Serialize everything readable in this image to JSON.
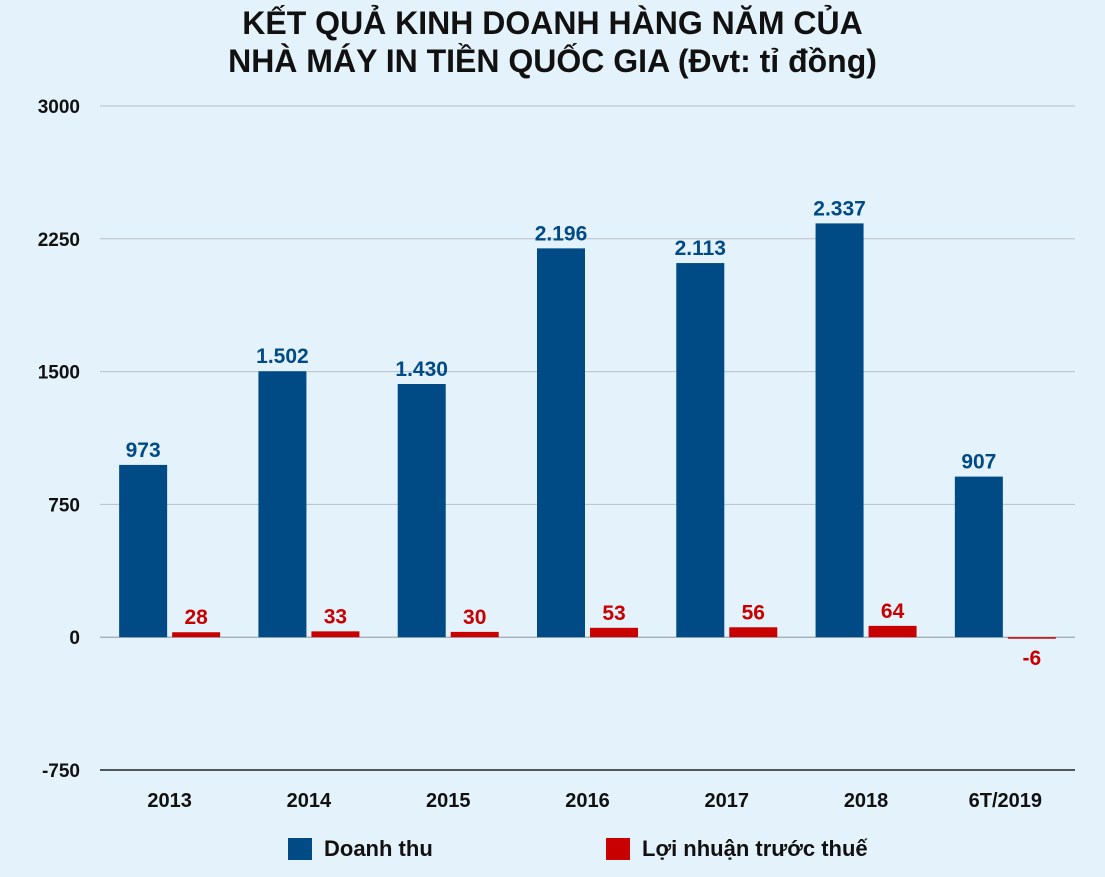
{
  "chart_data": {
    "type": "bar",
    "title_lines": [
      "KẾT QUẢ KINH DOANH HÀNG NĂM CỦA",
      "NHÀ MÁY IN TIỀN QUỐC GIA (Đvt: tỉ đồng)"
    ],
    "categories": [
      "2013",
      "2014",
      "2015",
      "2016",
      "2017",
      "2018",
      "6T/2019"
    ],
    "ylim": [
      -750,
      3000
    ],
    "yticks": [
      3000,
      2250,
      1500,
      750,
      0,
      -750
    ],
    "grid": true,
    "legend_position": "bottom",
    "series": [
      {
        "name": "Doanh thu",
        "color": "#004a86",
        "values": [
          973,
          1502,
          1430,
          2196,
          2113,
          2337,
          907
        ],
        "labels": [
          "973",
          "1.502",
          "1.430",
          "2.196",
          "2.113",
          "2.337",
          "907"
        ]
      },
      {
        "name": "Lợi nhuận trước thuế",
        "color": "#c80000",
        "values": [
          28,
          33,
          30,
          53,
          56,
          64,
          -6
        ],
        "labels": [
          "28",
          "33",
          "30",
          "53",
          "56",
          "64",
          "-6"
        ]
      }
    ]
  }
}
